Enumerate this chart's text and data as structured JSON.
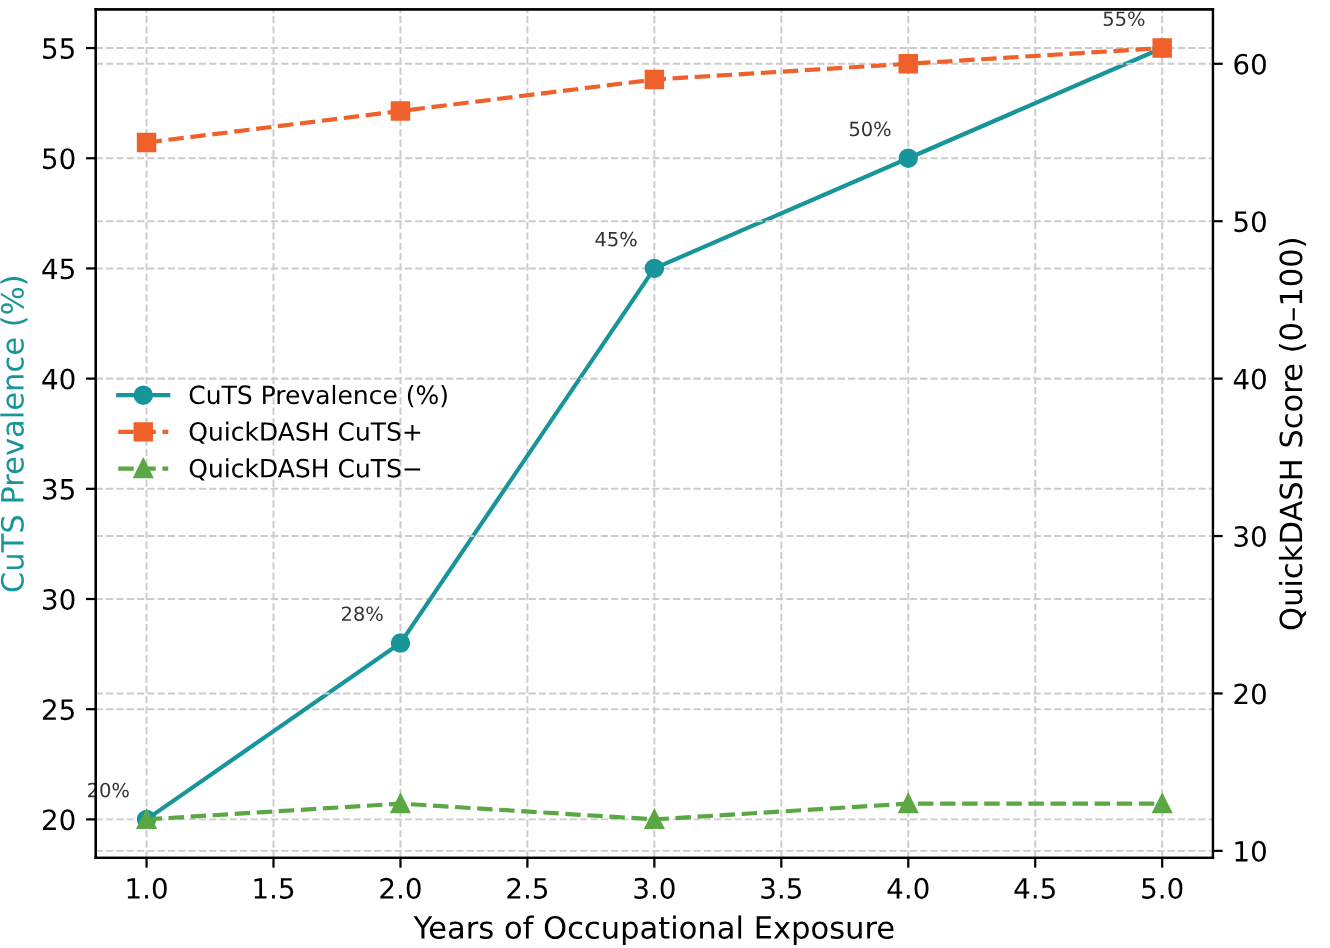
{
  "chart_data": {
    "type": "line",
    "xlabel": "Years of Occupational Exposure",
    "ylabel": "CuTS Prevalence (%)",
    "y2label": "QuickDASH Score (0–100)",
    "x": [
      1.0,
      2.0,
      3.0,
      4.0,
      5.0
    ],
    "series": [
      {
        "name": "CuTS Prevalence (%)",
        "color": "#17959b",
        "values": [
          20,
          28,
          45,
          50,
          55
        ],
        "marker": "circle",
        "line_style": "solid",
        "value_labels": [
          "20%",
          "28%",
          "45%",
          "50%",
          "55%"
        ]
      },
      {
        "name": "QuickDASH CuTS+",
        "color": "#f0602a",
        "values": [
          55,
          57,
          59,
          60,
          61
        ],
        "marker": "square",
        "line_style": "dashed",
        "axis": "y2"
      },
      {
        "name": "QuickDASH CuTS−",
        "color": "#5aa744",
        "values": [
          12,
          13,
          12,
          13,
          13
        ],
        "marker": "triangle",
        "line_style": "dashed",
        "axis": "y2"
      }
    ],
    "xlim": [
      0.8,
      5.2
    ],
    "xticks": [
      {
        "value": 1.0,
        "label": "1.0"
      },
      {
        "value": 1.5,
        "label": "1.5"
      },
      {
        "value": 2.0,
        "label": "2.0"
      },
      {
        "value": 2.5,
        "label": "2.5"
      },
      {
        "value": 3.0,
        "label": "3.0"
      },
      {
        "value": 3.5,
        "label": "3.5"
      },
      {
        "value": 4.0,
        "label": "4.0"
      },
      {
        "value": 4.5,
        "label": "4.5"
      },
      {
        "value": 5.0,
        "label": "5.0"
      }
    ],
    "ylim": [
      18.25,
      56.75
    ],
    "yticks": [
      20,
      25,
      30,
      35,
      40,
      45,
      50,
      55
    ],
    "y2lim": [
      9.55,
      63.45
    ],
    "y2ticks": [
      10,
      20,
      30,
      40,
      50,
      60
    ],
    "grid": true,
    "legend": "left"
  }
}
